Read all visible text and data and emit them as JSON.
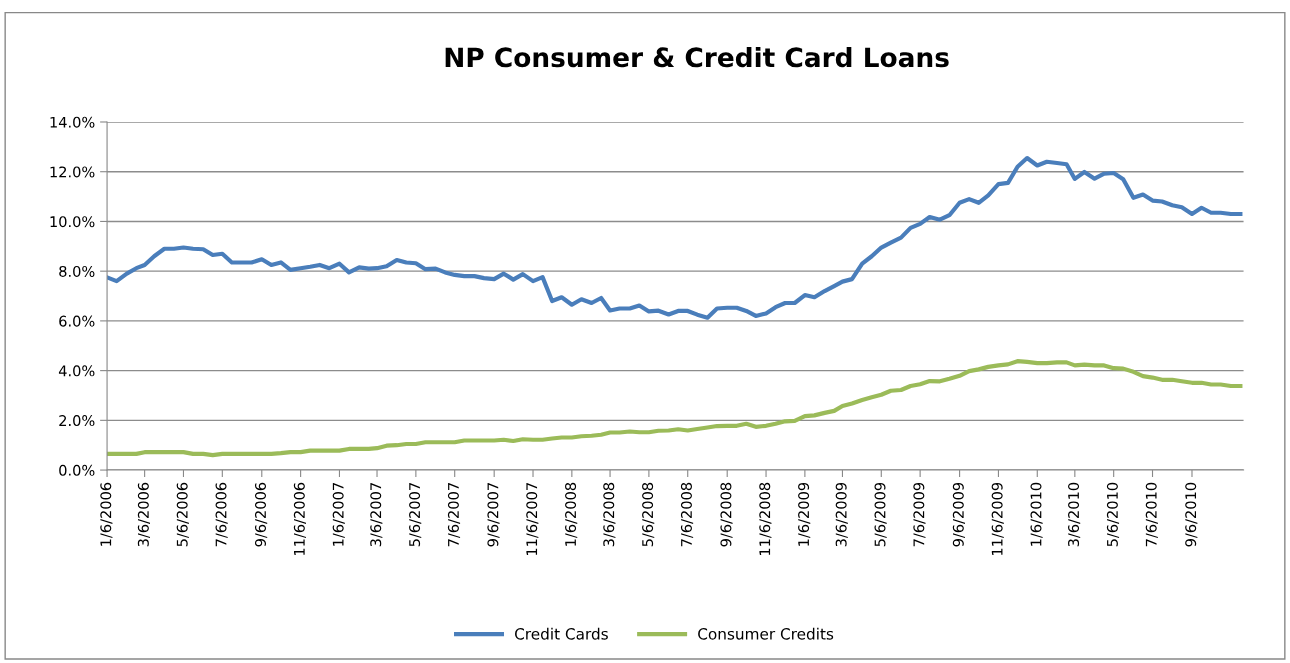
{
  "chart_data": {
    "type": "line",
    "title": "NP Consumer & Credit Card Loans",
    "x": [
      "2006-01-06",
      "2006-01-21",
      "2006-02-06",
      "2006-02-21",
      "2006-03-06",
      "2006-03-21",
      "2006-04-06",
      "2006-04-21",
      "2006-05-06",
      "2006-05-21",
      "2006-06-06",
      "2006-06-21",
      "2006-07-06",
      "2006-07-21",
      "2006-08-06",
      "2006-08-21",
      "2006-09-06",
      "2006-09-21",
      "2006-10-06",
      "2006-10-21",
      "2006-11-06",
      "2006-11-21",
      "2006-12-06",
      "2006-12-21",
      "2007-01-06",
      "2007-01-21",
      "2007-02-06",
      "2007-02-21",
      "2007-03-06",
      "2007-03-21",
      "2007-04-06",
      "2007-04-21",
      "2007-05-06",
      "2007-05-21",
      "2007-06-06",
      "2007-06-21",
      "2007-07-06",
      "2007-07-21",
      "2007-08-06",
      "2007-08-21",
      "2007-09-06",
      "2007-09-21",
      "2007-10-06",
      "2007-10-21",
      "2007-11-06",
      "2007-11-21",
      "2007-12-06",
      "2007-12-21",
      "2008-01-06",
      "2008-01-21",
      "2008-02-06",
      "2008-02-21",
      "2008-03-06",
      "2008-03-21",
      "2008-04-06",
      "2008-04-21",
      "2008-05-06",
      "2008-05-21",
      "2008-06-06",
      "2008-06-21",
      "2008-07-06",
      "2008-07-21",
      "2008-08-06",
      "2008-08-21",
      "2008-09-06",
      "2008-09-21",
      "2008-10-06",
      "2008-10-21",
      "2008-11-06",
      "2008-11-21",
      "2008-12-06",
      "2008-12-21",
      "2009-01-06",
      "2009-01-21",
      "2009-02-06",
      "2009-02-21",
      "2009-03-06",
      "2009-03-21",
      "2009-04-06",
      "2009-04-21",
      "2009-05-06",
      "2009-05-21",
      "2009-06-06",
      "2009-06-21",
      "2009-07-06",
      "2009-07-21",
      "2009-08-06",
      "2009-08-21",
      "2009-09-06",
      "2009-09-21",
      "2009-10-06",
      "2009-10-21",
      "2009-11-06",
      "2009-11-21",
      "2009-12-06",
      "2009-12-21",
      "2010-01-06",
      "2010-01-21",
      "2010-02-06",
      "2010-02-21",
      "2010-03-06",
      "2010-03-21",
      "2010-04-06",
      "2010-04-21",
      "2010-05-06",
      "2010-05-21",
      "2010-06-06",
      "2010-06-21",
      "2010-07-06",
      "2010-07-21",
      "2010-08-06",
      "2010-08-21",
      "2010-09-06",
      "2010-09-21",
      "2010-10-06",
      "2010-10-21",
      "2010-11-06",
      "2010-11-21"
    ],
    "series": [
      {
        "name": "Credit Cards",
        "color": "#4a7ebb",
        "values": [
          7.75,
          7.6,
          7.9,
          8.12,
          8.25,
          8.6,
          8.9,
          8.9,
          8.95,
          8.9,
          8.88,
          8.65,
          8.7,
          8.35,
          8.35,
          8.35,
          8.48,
          8.25,
          8.35,
          8.05,
          8.12,
          8.18,
          8.25,
          8.12,
          8.3,
          7.95,
          8.15,
          8.1,
          8.12,
          8.2,
          8.45,
          8.35,
          8.32,
          8.08,
          8.1,
          7.95,
          7.85,
          7.8,
          7.8,
          7.72,
          7.68,
          7.9,
          7.66,
          7.88,
          7.6,
          7.76,
          6.8,
          6.95,
          6.65,
          6.87,
          6.72,
          6.92,
          6.42,
          6.5,
          6.5,
          6.62,
          6.38,
          6.41,
          6.26,
          6.4,
          6.4,
          6.25,
          6.13,
          6.5,
          6.53,
          6.53,
          6.4,
          6.2,
          6.3,
          6.55,
          6.72,
          6.72,
          7.04,
          6.95,
          7.2,
          7.4,
          7.58,
          7.68,
          8.3,
          8.6,
          8.95,
          9.15,
          9.35,
          9.74,
          9.9,
          10.18,
          10.07,
          10.25,
          10.75,
          10.9,
          10.75,
          11.05,
          11.5,
          11.55,
          12.2,
          12.55,
          12.25,
          12.4,
          12.35,
          12.3,
          11.71,
          11.99,
          11.72,
          11.92,
          11.95,
          11.7,
          10.95,
          11.08,
          10.84,
          10.8,
          10.65,
          10.57,
          10.3,
          10.55,
          10.35,
          10.35,
          10.3,
          10.3
        ]
      },
      {
        "name": "Consumer Credits",
        "color": "#9bbb59",
        "values": [
          0.65,
          0.65,
          0.65,
          0.65,
          0.72,
          0.72,
          0.72,
          0.72,
          0.72,
          0.65,
          0.65,
          0.6,
          0.65,
          0.65,
          0.65,
          0.65,
          0.65,
          0.65,
          0.68,
          0.72,
          0.72,
          0.78,
          0.78,
          0.78,
          0.78,
          0.85,
          0.85,
          0.85,
          0.88,
          0.98,
          1.0,
          1.05,
          1.05,
          1.12,
          1.12,
          1.12,
          1.12,
          1.19,
          1.19,
          1.19,
          1.19,
          1.22,
          1.17,
          1.24,
          1.22,
          1.22,
          1.27,
          1.31,
          1.31,
          1.36,
          1.38,
          1.42,
          1.51,
          1.51,
          1.55,
          1.52,
          1.52,
          1.58,
          1.59,
          1.64,
          1.59,
          1.65,
          1.71,
          1.77,
          1.78,
          1.78,
          1.86,
          1.74,
          1.78,
          1.86,
          1.96,
          1.98,
          2.17,
          2.2,
          2.3,
          2.38,
          2.58,
          2.68,
          2.82,
          2.93,
          3.03,
          3.19,
          3.22,
          3.38,
          3.45,
          3.58,
          3.57,
          3.67,
          3.79,
          3.98,
          4.05,
          4.15,
          4.21,
          4.25,
          4.38,
          4.35,
          4.3,
          4.3,
          4.33,
          4.33,
          4.21,
          4.24,
          4.21,
          4.21,
          4.1,
          4.08,
          3.95,
          3.78,
          3.72,
          3.63,
          3.63,
          3.57,
          3.51,
          3.51,
          3.44,
          3.44,
          3.38,
          3.38
        ]
      }
    ],
    "xlim": [
      "2006-01-06",
      "2010-11-26"
    ],
    "xticks": [
      {
        "value": "2006-01-06",
        "label": "1/6/2006"
      },
      {
        "value": "2006-03-06",
        "label": "3/6/2006"
      },
      {
        "value": "2006-05-06",
        "label": "5/6/2006"
      },
      {
        "value": "2006-07-06",
        "label": "7/6/2006"
      },
      {
        "value": "2006-09-06",
        "label": "9/6/2006"
      },
      {
        "value": "2006-11-06",
        "label": "11/6/2006"
      },
      {
        "value": "2007-01-06",
        "label": "1/6/2007"
      },
      {
        "value": "2007-03-06",
        "label": "3/6/2007"
      },
      {
        "value": "2007-05-06",
        "label": "5/6/2007"
      },
      {
        "value": "2007-07-06",
        "label": "7/6/2007"
      },
      {
        "value": "2007-09-06",
        "label": "9/6/2007"
      },
      {
        "value": "2007-11-06",
        "label": "11/6/2007"
      },
      {
        "value": "2008-01-06",
        "label": "1/6/2008"
      },
      {
        "value": "2008-03-06",
        "label": "3/6/2008"
      },
      {
        "value": "2008-05-06",
        "label": "5/6/2008"
      },
      {
        "value": "2008-07-06",
        "label": "7/6/2008"
      },
      {
        "value": "2008-09-06",
        "label": "9/6/2008"
      },
      {
        "value": "2008-11-06",
        "label": "11/6/2008"
      },
      {
        "value": "2009-01-06",
        "label": "1/6/2009"
      },
      {
        "value": "2009-03-06",
        "label": "3/6/2009"
      },
      {
        "value": "2009-05-06",
        "label": "5/6/2009"
      },
      {
        "value": "2009-07-06",
        "label": "7/6/2009"
      },
      {
        "value": "2009-09-06",
        "label": "9/6/2009"
      },
      {
        "value": "2009-11-06",
        "label": "11/6/2009"
      },
      {
        "value": "2010-01-06",
        "label": "1/6/2010"
      },
      {
        "value": "2010-03-06",
        "label": "3/6/2010"
      },
      {
        "value": "2010-05-06",
        "label": "5/6/2010"
      },
      {
        "value": "2010-07-06",
        "label": "7/6/2010"
      },
      {
        "value": "2010-09-06",
        "label": "9/6/2010"
      }
    ],
    "ylim": [
      0,
      14
    ],
    "yticks": [
      {
        "value": 0,
        "label": "0.0%"
      },
      {
        "value": 2,
        "label": "2.0%"
      },
      {
        "value": 4,
        "label": "4.0%"
      },
      {
        "value": 6,
        "label": "6.0%"
      },
      {
        "value": 8,
        "label": "8.0%"
      },
      {
        "value": 10,
        "label": "10.0%"
      },
      {
        "value": 12,
        "label": "12.0%"
      },
      {
        "value": 14,
        "label": "14.0%"
      }
    ],
    "grid": "y",
    "legend": "bottom",
    "marker": "none",
    "line_style": "solid"
  }
}
